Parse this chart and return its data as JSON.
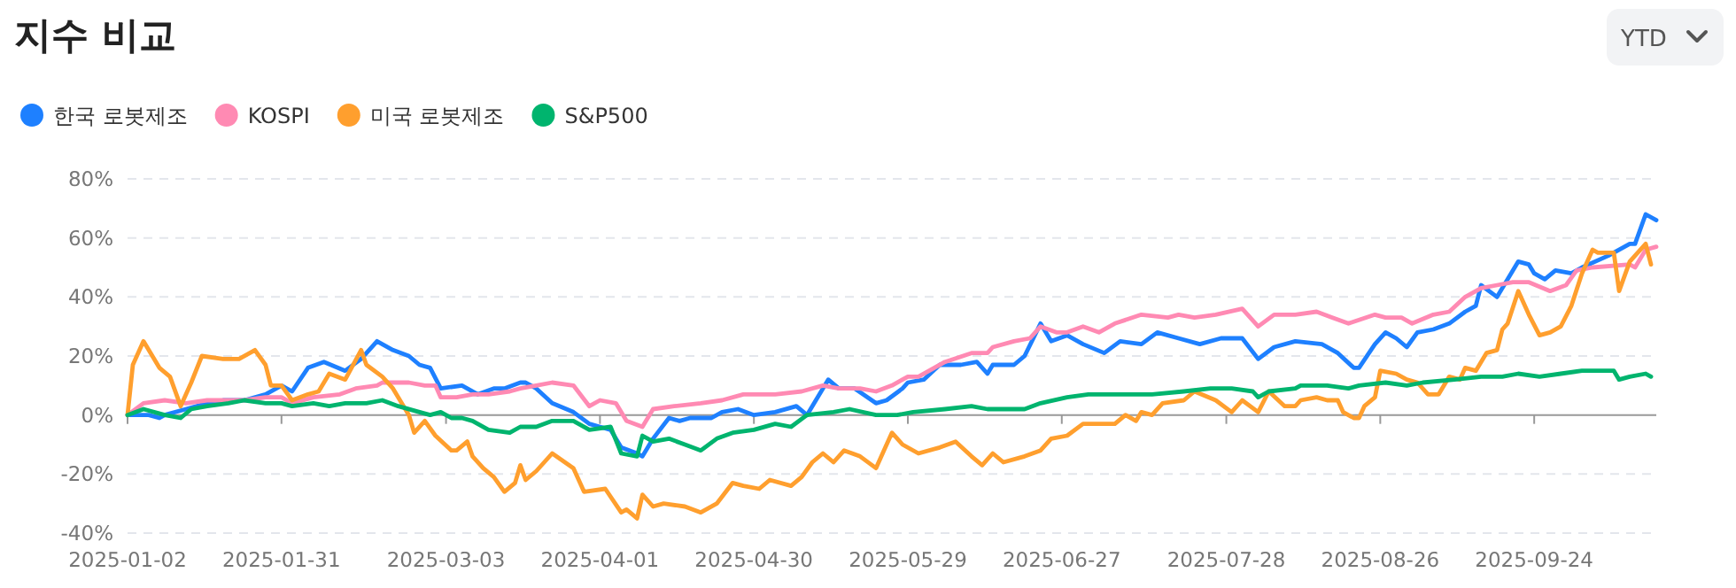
{
  "chart_data": {
    "type": "line",
    "title": "지수 비교",
    "annotations": [
      "YTD"
    ],
    "legend": "top left",
    "grid": "y",
    "xlim": [
      "2025-01-02",
      "2025-10-17"
    ],
    "xticks": [
      "2025-01-02",
      "2025-01-31",
      "2025-03-03",
      "2025-04-01",
      "2025-04-30",
      "2025-05-29",
      "2025-06-27",
      "2025-07-28",
      "2025-08-26",
      "2025-09-24"
    ],
    "ylim": [
      -40,
      80
    ],
    "yticks": [
      {
        "value": -40,
        "label": "-40%"
      },
      {
        "value": -20,
        "label": "-20%"
      },
      {
        "value": 0,
        "label": "0%"
      },
      {
        "value": 20,
        "label": "20%"
      },
      {
        "value": 40,
        "label": "40%"
      },
      {
        "value": 60,
        "label": "60%"
      },
      {
        "value": 80,
        "label": "80%"
      }
    ],
    "series": [
      {
        "name": "한국 로봇제조",
        "color": "#1e80ff",
        "x": [
          "2025-01-02",
          "2025-01-06",
          "2025-01-08",
          "2025-01-09",
          "2025-01-13",
          "2025-01-17",
          "2025-01-20",
          "2025-01-24",
          "2025-01-28",
          "2025-01-31",
          "2025-02-02",
          "2025-02-05",
          "2025-02-08",
          "2025-02-12",
          "2025-02-15",
          "2025-02-18",
          "2025-02-21",
          "2025-02-24",
          "2025-02-26",
          "2025-02-28",
          "2025-03-02",
          "2025-03-06",
          "2025-03-09",
          "2025-03-12",
          "2025-03-14",
          "2025-03-17",
          "2025-03-18",
          "2025-03-20",
          "2025-03-23",
          "2025-03-27",
          "2025-03-30",
          "2025-04-01",
          "2025-04-03",
          "2025-04-05",
          "2025-04-08",
          "2025-04-09",
          "2025-04-11",
          "2025-04-14",
          "2025-04-16",
          "2025-04-18",
          "2025-04-22",
          "2025-04-24",
          "2025-04-27",
          "2025-04-30",
          "2025-05-04",
          "2025-05-08",
          "2025-05-10",
          "2025-05-12",
          "2025-05-14",
          "2025-05-16",
          "2025-05-19",
          "2025-05-23",
          "2025-05-25",
          "2025-05-28",
          "2025-05-29",
          "2025-06-01",
          "2025-06-04",
          "2025-06-08",
          "2025-06-11",
          "2025-06-13",
          "2025-06-14",
          "2025-06-18",
          "2025-06-20",
          "2025-06-23",
          "2025-06-25",
          "2025-06-28",
          "2025-07-01",
          "2025-07-05",
          "2025-07-08",
          "2025-07-12",
          "2025-07-15",
          "2025-07-19",
          "2025-07-23",
          "2025-07-27",
          "2025-07-31",
          "2025-08-03",
          "2025-08-06",
          "2025-08-10",
          "2025-08-15",
          "2025-08-18",
          "2025-08-21",
          "2025-08-22",
          "2025-08-25",
          "2025-08-27",
          "2025-08-29",
          "2025-08-31",
          "2025-09-02",
          "2025-09-05",
          "2025-09-08",
          "2025-09-11",
          "2025-09-13",
          "2025-09-14",
          "2025-09-17",
          "2025-09-19",
          "2025-09-21",
          "2025-09-23",
          "2025-09-24",
          "2025-09-26",
          "2025-09-28",
          "2025-10-01",
          "2025-10-03",
          "2025-10-08",
          "2025-10-12",
          "2025-10-13",
          "2025-10-15",
          "2025-10-17"
        ],
        "values": [
          0,
          0,
          -1,
          0,
          2,
          4,
          5,
          5,
          7,
          10,
          8,
          16,
          18,
          15,
          19,
          25,
          22,
          20,
          17,
          16,
          9,
          10,
          7,
          9,
          9,
          11,
          11,
          9,
          4,
          1,
          -3,
          -4,
          -5,
          -11,
          -13,
          -14,
          -8,
          -1,
          -2,
          -1,
          -1,
          1,
          2,
          0,
          1,
          3,
          0,
          6,
          12,
          9,
          9,
          4,
          5,
          9,
          11,
          12,
          17,
          17,
          18,
          14,
          17,
          17,
          20,
          31,
          25,
          27,
          24,
          21,
          25,
          24,
          28,
          26,
          24,
          26,
          26,
          19,
          23,
          25,
          24,
          21,
          16,
          16,
          24,
          28,
          26,
          23,
          28,
          29,
          31,
          35,
          37,
          44,
          40,
          46,
          52,
          51,
          48,
          46,
          49,
          48,
          50,
          54,
          58,
          58,
          68,
          66
        ]
      },
      {
        "name": "KOSPI",
        "color": "#ff8ab3",
        "x": [
          "2025-01-02",
          "2025-01-05",
          "2025-01-09",
          "2025-01-13",
          "2025-01-17",
          "2025-01-20",
          "2025-01-24",
          "2025-01-28",
          "2025-01-31",
          "2025-02-02",
          "2025-02-06",
          "2025-02-11",
          "2025-02-14",
          "2025-02-18",
          "2025-02-19",
          "2025-02-24",
          "2025-02-27",
          "2025-03-01",
          "2025-03-02",
          "2025-03-05",
          "2025-03-08",
          "2025-03-11",
          "2025-03-15",
          "2025-03-17",
          "2025-03-20",
          "2025-03-23",
          "2025-03-27",
          "2025-03-30",
          "2025-04-01",
          "2025-04-04",
          "2025-04-06",
          "2025-04-09",
          "2025-04-11",
          "2025-04-15",
          "2025-04-20",
          "2025-04-24",
          "2025-04-28",
          "2025-05-04",
          "2025-05-09",
          "2025-05-13",
          "2025-05-16",
          "2025-05-20",
          "2025-05-23",
          "2025-05-26",
          "2025-05-28",
          "2025-05-29",
          "2025-05-31",
          "2025-06-05",
          "2025-06-10",
          "2025-06-13",
          "2025-06-14",
          "2025-06-18",
          "2025-06-21",
          "2025-06-23",
          "2025-06-26",
          "2025-06-28",
          "2025-07-01",
          "2025-07-04",
          "2025-07-07",
          "2025-07-12",
          "2025-07-17",
          "2025-07-19",
          "2025-07-22",
          "2025-07-26",
          "2025-07-31",
          "2025-08-03",
          "2025-08-06",
          "2025-08-10",
          "2025-08-14",
          "2025-08-17",
          "2025-08-20",
          "2025-08-25",
          "2025-08-27",
          "2025-08-30",
          "2025-09-01",
          "2025-09-05",
          "2025-09-08",
          "2025-09-11",
          "2025-09-14",
          "2025-09-17",
          "2025-09-20",
          "2025-09-23",
          "2025-09-27",
          "2025-09-30",
          "2025-10-02",
          "2025-10-05",
          "2025-10-12",
          "2025-10-13",
          "2025-10-15",
          "2025-10-17"
        ],
        "values": [
          0,
          4,
          5,
          4,
          5,
          5,
          5,
          6,
          6,
          4,
          6,
          7,
          9,
          10,
          11,
          11,
          10,
          10,
          6,
          6,
          7,
          7,
          8,
          9,
          10,
          11,
          10,
          3,
          5,
          4,
          -2,
          -4,
          2,
          3,
          4,
          5,
          7,
          7,
          8,
          10,
          9,
          9,
          8,
          10,
          12,
          13,
          13,
          18,
          21,
          21,
          23,
          25,
          26,
          30,
          28,
          28,
          30,
          28,
          31,
          34,
          33,
          34,
          33,
          34,
          36,
          30,
          34,
          34,
          35,
          33,
          31,
          34,
          33,
          33,
          31,
          34,
          35,
          40,
          43,
          44,
          45,
          45,
          42,
          44,
          49,
          50,
          51,
          50,
          56,
          57
        ]
      },
      {
        "name": "미국 로봇제조",
        "color": "#ff9f2e",
        "x": [
          "2025-01-02",
          "2025-01-03",
          "2025-01-05",
          "2025-01-08",
          "2025-01-10",
          "2025-01-12",
          "2025-01-14",
          "2025-01-16",
          "2025-01-20",
          "2025-01-23",
          "2025-01-26",
          "2025-01-28",
          "2025-01-29",
          "2025-01-31",
          "2025-02-02",
          "2025-02-05",
          "2025-02-07",
          "2025-02-09",
          "2025-02-12",
          "2025-02-15",
          "2025-02-16",
          "2025-02-19",
          "2025-02-21",
          "2025-02-24",
          "2025-02-25",
          "2025-02-27",
          "2025-03-01",
          "2025-03-04",
          "2025-03-05",
          "2025-03-07",
          "2025-03-08",
          "2025-03-10",
          "2025-03-12",
          "2025-03-14",
          "2025-03-16",
          "2025-03-17",
          "2025-03-18",
          "2025-03-20",
          "2025-03-23",
          "2025-03-27",
          "2025-03-29",
          "2025-04-02",
          "2025-04-05",
          "2025-04-06",
          "2025-04-08",
          "2025-04-09",
          "2025-04-11",
          "2025-04-13",
          "2025-04-17",
          "2025-04-20",
          "2025-04-23",
          "2025-04-26",
          "2025-04-28",
          "2025-05-01",
          "2025-05-03",
          "2025-05-07",
          "2025-05-09",
          "2025-05-11",
          "2025-05-13",
          "2025-05-15",
          "2025-05-17",
          "2025-05-20",
          "2025-05-23",
          "2025-05-26",
          "2025-05-28",
          "2025-05-31",
          "2025-06-04",
          "2025-06-07",
          "2025-06-10",
          "2025-06-12",
          "2025-06-14",
          "2025-06-16",
          "2025-06-20",
          "2025-06-23",
          "2025-06-25",
          "2025-06-28",
          "2025-07-01",
          "2025-07-05",
          "2025-07-07",
          "2025-07-09",
          "2025-07-11",
          "2025-07-12",
          "2025-07-14",
          "2025-07-16",
          "2025-07-20",
          "2025-07-22",
          "2025-07-26",
          "2025-07-29",
          "2025-07-31",
          "2025-08-03",
          "2025-08-05",
          "2025-08-08",
          "2025-08-10",
          "2025-08-11",
          "2025-08-14",
          "2025-08-16",
          "2025-08-18",
          "2025-08-19",
          "2025-08-21",
          "2025-08-22",
          "2025-08-23",
          "2025-08-25",
          "2025-08-26",
          "2025-08-29",
          "2025-08-31",
          "2025-09-02",
          "2025-09-04",
          "2025-09-06",
          "2025-09-08",
          "2025-09-10",
          "2025-09-11",
          "2025-09-13",
          "2025-09-15",
          "2025-09-17",
          "2025-09-18",
          "2025-09-19",
          "2025-09-21",
          "2025-09-23",
          "2025-09-25",
          "2025-09-27",
          "2025-09-29",
          "2025-10-01",
          "2025-10-03",
          "2025-10-05",
          "2025-10-06",
          "2025-10-09",
          "2025-10-10",
          "2025-10-12",
          "2025-10-15",
          "2025-10-16"
        ],
        "values": [
          0,
          17,
          25,
          16,
          13,
          3,
          11,
          20,
          19,
          19,
          22,
          17,
          10,
          10,
          5,
          7,
          8,
          14,
          12,
          22,
          17,
          13,
          9,
          0,
          -6,
          -2,
          -7,
          -12,
          -12,
          -9,
          -14,
          -18,
          -21,
          -26,
          -23,
          -17,
          -22,
          -19,
          -13,
          -18,
          -26,
          -25,
          -33,
          -32,
          -35,
          -27,
          -31,
          -30,
          -31,
          -33,
          -30,
          -23,
          -24,
          -25,
          -22,
          -24,
          -21,
          -16,
          -13,
          -16,
          -12,
          -14,
          -18,
          -6,
          -10,
          -13,
          -11,
          -9,
          -14,
          -17,
          -13,
          -16,
          -14,
          -12,
          -8,
          -7,
          -3,
          -3,
          -3,
          0,
          -2,
          1,
          0,
          4,
          5,
          8,
          5,
          1,
          5,
          1,
          8,
          3,
          3,
          5,
          6,
          5,
          5,
          1,
          -1,
          -1,
          3,
          6,
          15,
          14,
          12,
          11,
          7,
          7,
          13,
          12,
          16,
          15,
          21,
          22,
          29,
          31,
          42,
          34,
          27,
          28,
          30,
          37,
          48,
          56,
          55,
          55,
          42,
          52,
          58,
          51
        ]
      },
      {
        "name": "S&P500",
        "color": "#00b46e",
        "x": [
          "2025-01-02",
          "2025-01-05",
          "2025-01-09",
          "2025-01-12",
          "2025-01-14",
          "2025-01-17",
          "2025-01-21",
          "2025-01-24",
          "2025-01-28",
          "2025-01-31",
          "2025-02-02",
          "2025-02-06",
          "2025-02-09",
          "2025-02-12",
          "2025-02-16",
          "2025-02-19",
          "2025-02-22",
          "2025-02-26",
          "2025-02-28",
          "2025-03-02",
          "2025-03-04",
          "2025-03-06",
          "2025-03-08",
          "2025-03-11",
          "2025-03-15",
          "2025-03-17",
          "2025-03-20",
          "2025-03-23",
          "2025-03-27",
          "2025-03-30",
          "2025-04-03",
          "2025-04-05",
          "2025-04-08",
          "2025-04-09",
          "2025-04-11",
          "2025-04-14",
          "2025-04-17",
          "2025-04-20",
          "2025-04-23",
          "2025-04-26",
          "2025-04-30",
          "2025-05-04",
          "2025-05-07",
          "2025-05-10",
          "2025-05-15",
          "2025-05-18",
          "2025-05-23",
          "2025-05-27",
          "2025-05-30",
          "2025-06-05",
          "2025-06-10",
          "2025-06-13",
          "2025-06-16",
          "2025-06-20",
          "2025-06-23",
          "2025-06-28",
          "2025-07-02",
          "2025-07-08",
          "2025-07-14",
          "2025-07-20",
          "2025-07-25",
          "2025-07-29",
          "2025-08-02",
          "2025-08-03",
          "2025-08-05",
          "2025-08-10",
          "2025-08-11",
          "2025-08-16",
          "2025-08-20",
          "2025-08-22",
          "2025-08-27",
          "2025-08-31",
          "2025-09-03",
          "2025-09-09",
          "2025-09-14",
          "2025-09-18",
          "2025-09-21",
          "2025-09-25",
          "2025-09-29",
          "2025-10-03",
          "2025-10-07",
          "2025-10-09",
          "2025-10-10",
          "2025-10-12",
          "2025-10-15",
          "2025-10-16"
        ],
        "values": [
          0,
          2,
          0,
          -1,
          2,
          3,
          4,
          5,
          4,
          4,
          3,
          4,
          3,
          4,
          4,
          5,
          3,
          1,
          0,
          1,
          -1,
          -1,
          -2,
          -5,
          -6,
          -4,
          -4,
          -2,
          -2,
          -5,
          -4,
          -13,
          -14,
          -7,
          -9,
          -8,
          -10,
          -12,
          -8,
          -6,
          -5,
          -3,
          -4,
          0,
          1,
          2,
          0,
          0,
          1,
          2,
          3,
          2,
          2,
          2,
          4,
          6,
          7,
          7,
          7,
          8,
          9,
          9,
          8,
          6,
          8,
          9,
          10,
          10,
          9,
          10,
          11,
          10,
          11,
          12,
          13,
          13,
          14,
          13,
          14,
          15,
          15,
          15,
          12,
          13,
          14,
          13
        ]
      }
    ]
  }
}
